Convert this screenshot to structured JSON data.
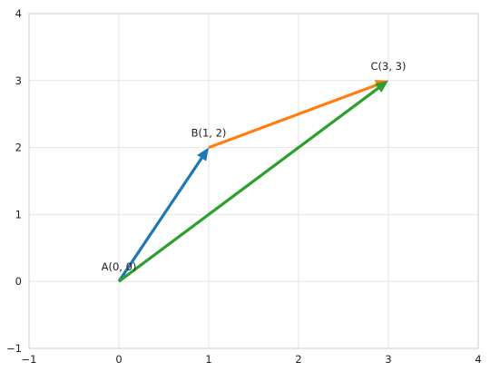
{
  "chart_data": {
    "type": "line",
    "title": "",
    "xlabel": "",
    "ylabel": "",
    "xlim": [
      -1,
      4
    ],
    "ylim": [
      -1,
      4
    ],
    "x_ticks": [
      -1,
      0,
      1,
      2,
      3,
      4
    ],
    "y_ticks": [
      -1,
      0,
      1,
      2,
      3,
      4
    ],
    "x_tick_labels": [
      "−1",
      "0",
      "1",
      "2",
      "3",
      "4"
    ],
    "y_tick_labels": [
      "−1",
      "0",
      "1",
      "2",
      "3",
      "4"
    ],
    "grid": true,
    "points": [
      {
        "label": "A(0, 0)",
        "x": 0,
        "y": 0
      },
      {
        "label": "B(1, 2)",
        "x": 1,
        "y": 2
      },
      {
        "label": "C(3, 3)",
        "x": 3,
        "y": 3
      }
    ],
    "vectors": [
      {
        "from": [
          0,
          0
        ],
        "to": [
          1,
          2
        ],
        "color": "#1f77b4"
      },
      {
        "from": [
          1,
          2
        ],
        "to": [
          3,
          3
        ],
        "color": "#ff7f0e"
      },
      {
        "from": [
          0,
          0
        ],
        "to": [
          3,
          3
        ],
        "color": "#2ca02c"
      }
    ]
  }
}
